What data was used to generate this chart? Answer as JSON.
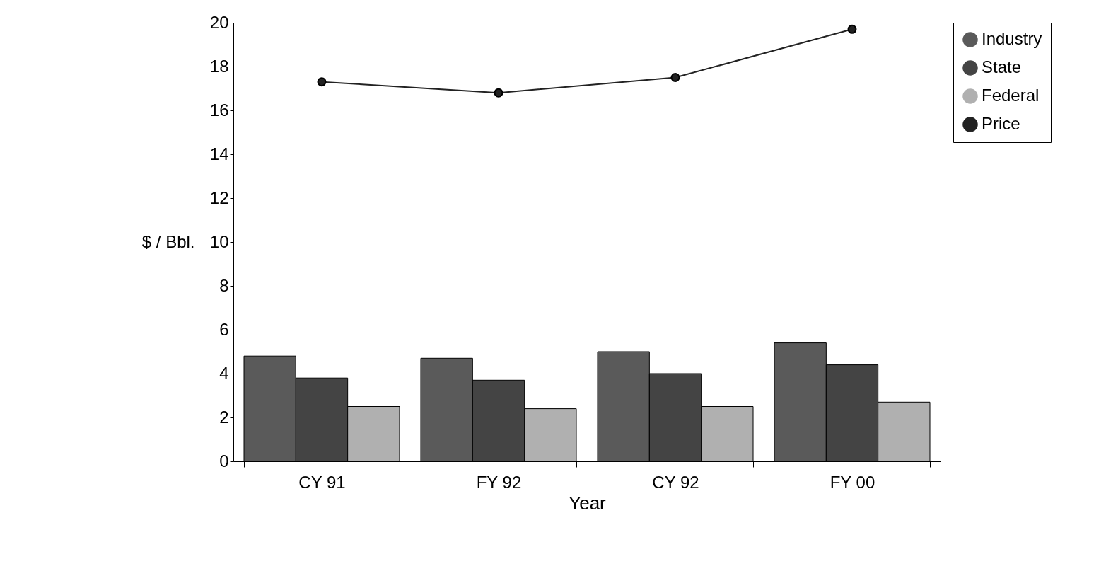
{
  "chart_data": {
    "type": "bar",
    "xlabel": "Year",
    "ylabel": "$ / Bbl.",
    "categories": [
      "CY 91",
      "FY 92",
      "CY 92",
      "FY 00"
    ],
    "series": [
      {
        "name": "Industry",
        "color": "#5a5a5a",
        "values": [
          4.8,
          4.7,
          5.0,
          5.4
        ]
      },
      {
        "name": "State",
        "color": "#444444",
        "values": [
          3.8,
          3.7,
          4.0,
          4.4
        ]
      },
      {
        "name": "Federal",
        "color": "#b0b0b0",
        "values": [
          2.5,
          2.4,
          2.5,
          2.7
        ]
      },
      {
        "name": "Price",
        "type": "line",
        "color": "#222222",
        "values": [
          17.3,
          16.8,
          17.5,
          19.7
        ]
      }
    ],
    "ylim": [
      0,
      20
    ],
    "yticks": [
      0,
      2,
      4,
      6,
      8,
      10,
      12,
      14,
      16,
      18,
      20
    ],
    "grid": false,
    "legend": "right",
    "marker": "circle",
    "line_style": "solid"
  }
}
